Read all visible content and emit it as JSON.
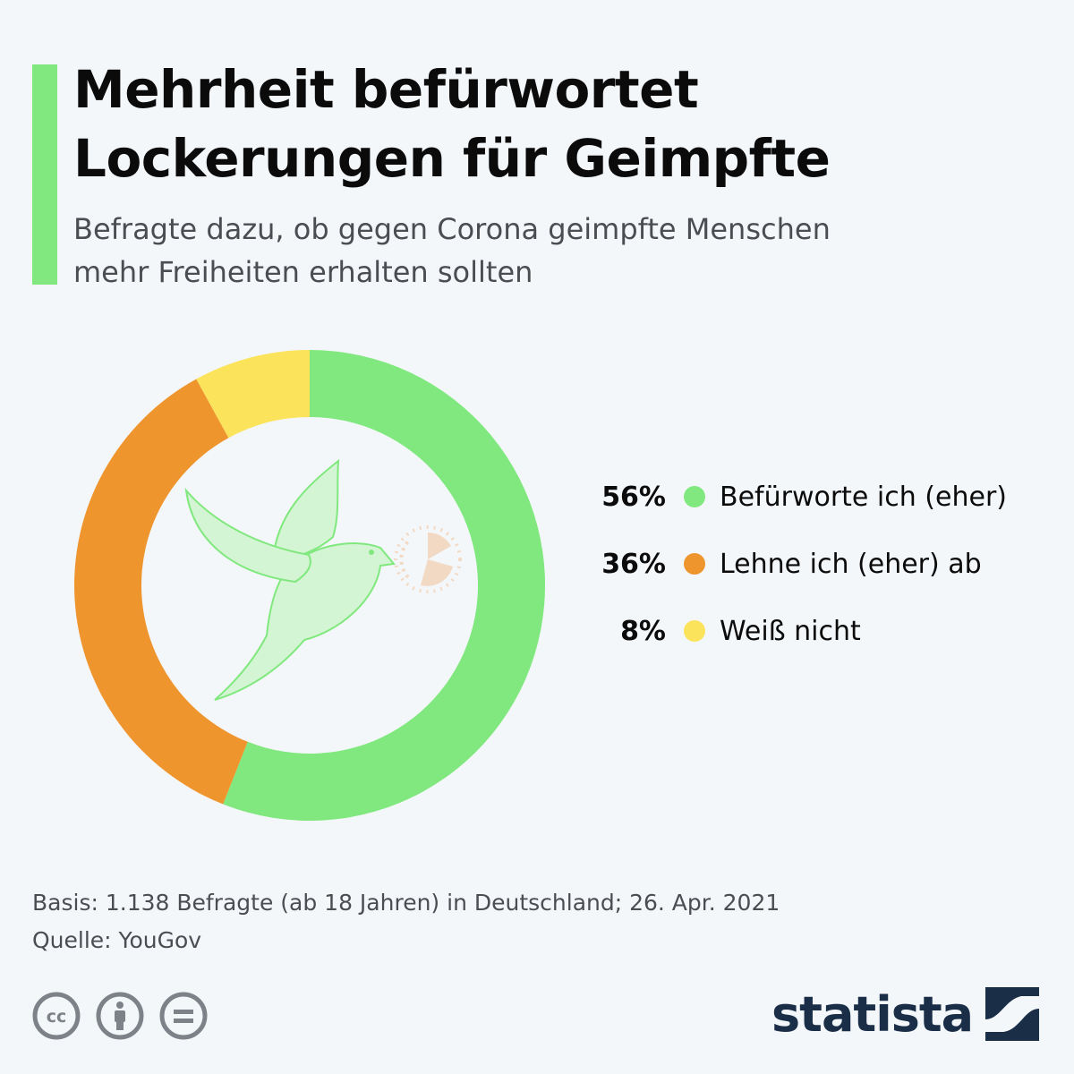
{
  "header": {
    "title_line1": "Mehrheit befürwortet",
    "title_line2": "Lockerungen für Geimpfte",
    "subtitle_line1": "Befragte dazu, ob gegen Corona geimpfte Menschen",
    "subtitle_line2": "mehr Freiheiten erhalten sollten",
    "accent_color": "#80e87e"
  },
  "chart_data": {
    "type": "pie",
    "donut": true,
    "title": "Mehrheit befürwortet Lockerungen für Geimpfte",
    "subtitle": "Befragte dazu, ob gegen Corona geimpfte Menschen mehr Freiheiten erhalten sollten",
    "legend_position": "right",
    "slices": [
      {
        "label": "Befürworte ich (eher)",
        "value": 56,
        "value_label": "56%",
        "color": "#80e87e"
      },
      {
        "label": "Lehne ich (eher) ab",
        "value": 36,
        "value_label": "36%",
        "color": "#ef952e"
      },
      {
        "label": "Weiß nicht",
        "value": 8,
        "value_label": "8%",
        "color": "#fbe35b"
      }
    ],
    "center_illustration": "dove-with-pill-icon"
  },
  "footer": {
    "basis": "Basis: 1.138 Befragte (ab 18 Jahren) in Deutschland; 26. Apr. 2021",
    "source": "Quelle: YouGov"
  },
  "license_icons": [
    "cc-icon",
    "attribution-icon",
    "no-derivatives-icon"
  ],
  "brand": {
    "name": "statista",
    "logo_icon": "statista-logo-icon",
    "color": "#1a2e48"
  }
}
